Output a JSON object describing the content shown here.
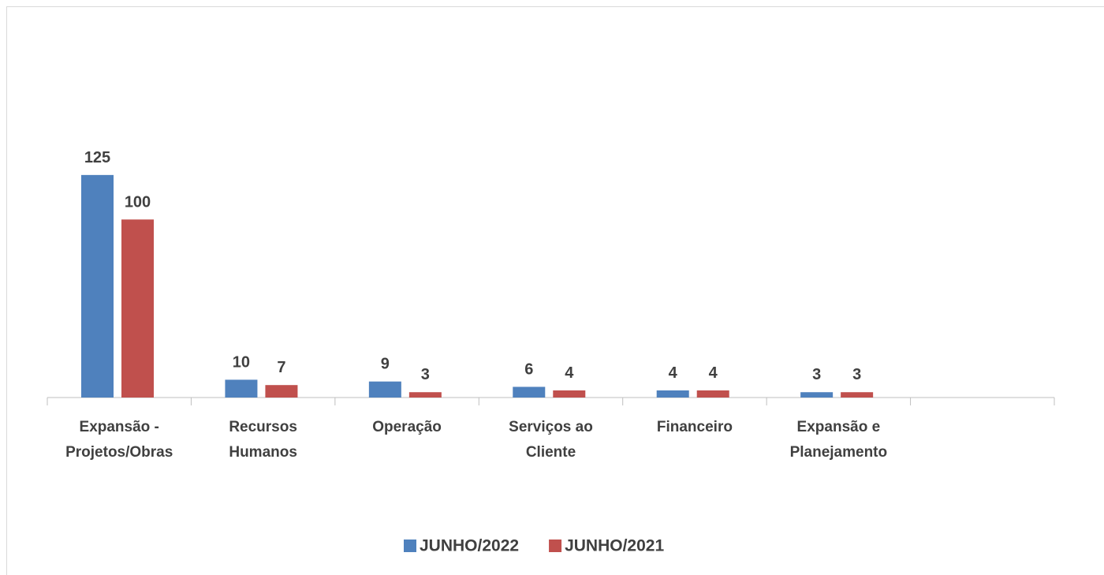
{
  "chart_data": {
    "type": "bar",
    "categories": [
      "Expansão - Projetos/Obras",
      "Recursos Humanos",
      "Operação",
      "Serviços ao Cliente",
      "Financeiro",
      "Expansão e Planejamento",
      null
    ],
    "series": [
      {
        "name": "JUNHO/2022",
        "color": "#4f81bd",
        "values": [
          125,
          10,
          9,
          6,
          4,
          3,
          null
        ]
      },
      {
        "name": "JUNHO/2021",
        "color": "#c0504d",
        "values": [
          100,
          7,
          3,
          4,
          4,
          3,
          null
        ]
      }
    ],
    "ylim": [
      0,
      140
    ],
    "legend": "bottom"
  }
}
